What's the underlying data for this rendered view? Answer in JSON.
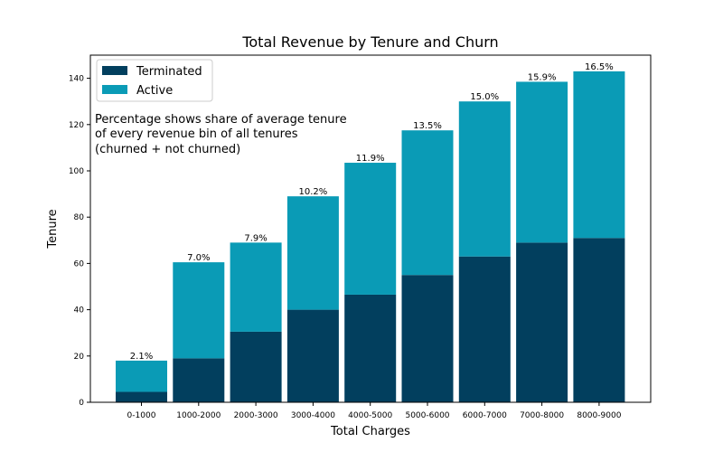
{
  "chart_data": {
    "type": "bar",
    "stacked": true,
    "title": "Total Revenue by Tenure and Churn",
    "xlabel": "Total Charges",
    "ylabel": "Tenure",
    "ylim": [
      0,
      150
    ],
    "yticks": [
      "0",
      "20",
      "40",
      "60",
      "80",
      "100",
      "120",
      "140"
    ],
    "categories": [
      "0-1000",
      "1000-2000",
      "2000-3000",
      "3000-4000",
      "4000-5000",
      "5000-6000",
      "6000-7000",
      "7000-8000",
      "8000-9000"
    ],
    "series": [
      {
        "name": "Terminated",
        "color": "#023f5e",
        "values": [
          4.5,
          19,
          30.5,
          40,
          46.5,
          55,
          63,
          69,
          71
        ]
      },
      {
        "name": "Active",
        "color": "#0a9bb6",
        "values": [
          13.5,
          41.5,
          38.5,
          49,
          57,
          62.5,
          67,
          69.5,
          72
        ]
      }
    ],
    "data_labels": [
      "2.1%",
      "7.0%",
      "7.9%",
      "10.2%",
      "11.9%",
      "13.5%",
      "15.0%",
      "15.9%",
      "16.5%"
    ],
    "legend_position": "top-left",
    "annotation": [
      "Percentage shows share of average tenure",
      "of every revenue bin of all tenures",
      "(churned + not churned)"
    ]
  }
}
